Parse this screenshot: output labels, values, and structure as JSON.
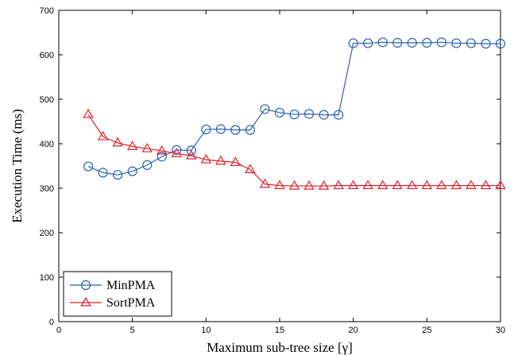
{
  "chart_data": {
    "type": "line",
    "xlabel": "Maximum sub-tree size [γ]",
    "ylabel": "Execution Time (ms)",
    "xlim": [
      0,
      30
    ],
    "ylim": [
      0,
      700
    ],
    "xticks": [
      0,
      5,
      10,
      15,
      20,
      25,
      30
    ],
    "yticks": [
      0,
      100,
      200,
      300,
      400,
      500,
      600,
      700
    ],
    "grid": false,
    "legend_position": "bottom-left",
    "series": [
      {
        "name": "MinPMA",
        "color": "#2a5fb0",
        "marker": "circle",
        "x": [
          2,
          3,
          4,
          5,
          6,
          7,
          8,
          9,
          10,
          11,
          12,
          13,
          14,
          15,
          16,
          17,
          18,
          19,
          20,
          21,
          22,
          23,
          24,
          25,
          26,
          27,
          28,
          29,
          30
        ],
        "y": [
          349,
          335,
          330,
          338,
          352,
          371,
          386,
          385,
          432,
          433,
          431,
          431,
          478,
          470,
          466,
          467,
          465,
          465,
          626,
          626,
          628,
          627,
          627,
          627,
          628,
          626,
          626,
          625,
          625
        ]
      },
      {
        "name": "SortPMA",
        "color": "#e0202a",
        "marker": "triangle",
        "x": [
          2,
          3,
          4,
          5,
          6,
          7,
          8,
          9,
          10,
          11,
          12,
          13,
          14,
          15,
          16,
          17,
          18,
          19,
          20,
          21,
          22,
          23,
          24,
          25,
          26,
          27,
          28,
          29,
          30
        ],
        "y": [
          466,
          416,
          402,
          394,
          389,
          384,
          378,
          373,
          364,
          361,
          358,
          342,
          309,
          306,
          305,
          305,
          305,
          306,
          306,
          306,
          306,
          306,
          306,
          306,
          306,
          306,
          306,
          306,
          306
        ]
      }
    ]
  }
}
